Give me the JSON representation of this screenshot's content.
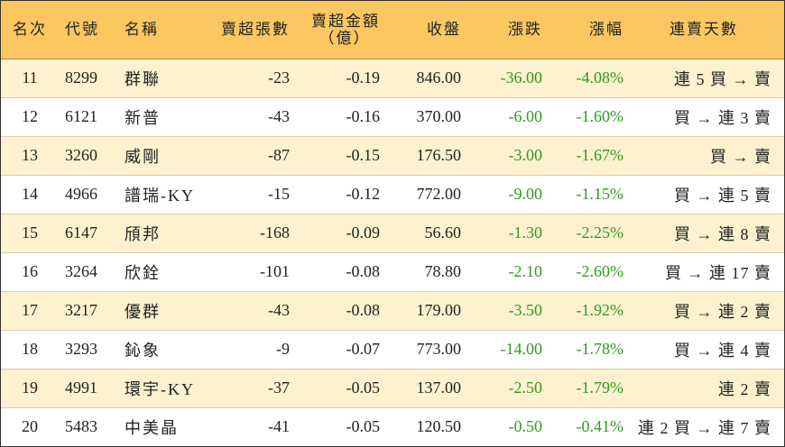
{
  "headers": {
    "rank": "名次",
    "code": "代號",
    "name": "名稱",
    "net_sell_lots": "賣超張數",
    "net_sell_amount_line1": "賣超金額",
    "net_sell_amount_line2": "（億）",
    "close": "收盤",
    "change": "漲跌",
    "change_pct": "漲幅",
    "consecutive_days": "連賣天數"
  },
  "rows": [
    {
      "rank": "11",
      "code": "8299",
      "name": "群聯",
      "lots": "-23",
      "amount": "-0.19",
      "close": "846.00",
      "change": "-36.00",
      "pct": "-4.08%",
      "streak": "連 5 買 → 賣"
    },
    {
      "rank": "12",
      "code": "6121",
      "name": "新普",
      "lots": "-43",
      "amount": "-0.16",
      "close": "370.00",
      "change": "-6.00",
      "pct": "-1.60%",
      "streak": "買 → 連 3 賣"
    },
    {
      "rank": "13",
      "code": "3260",
      "name": "威剛",
      "lots": "-87",
      "amount": "-0.15",
      "close": "176.50",
      "change": "-3.00",
      "pct": "-1.67%",
      "streak": "買 → 賣"
    },
    {
      "rank": "14",
      "code": "4966",
      "name": "譜瑞-KY",
      "lots": "-15",
      "amount": "-0.12",
      "close": "772.00",
      "change": "-9.00",
      "pct": "-1.15%",
      "streak": "買 → 連 5 賣"
    },
    {
      "rank": "15",
      "code": "6147",
      "name": "頎邦",
      "lots": "-168",
      "amount": "-0.09",
      "close": "56.60",
      "change": "-1.30",
      "pct": "-2.25%",
      "streak": "買 → 連 8 賣"
    },
    {
      "rank": "16",
      "code": "3264",
      "name": "欣銓",
      "lots": "-101",
      "amount": "-0.08",
      "close": "78.80",
      "change": "-2.10",
      "pct": "-2.60%",
      "streak": "買 → 連 17 賣"
    },
    {
      "rank": "17",
      "code": "3217",
      "name": "優群",
      "lots": "-43",
      "amount": "-0.08",
      "close": "179.00",
      "change": "-3.50",
      "pct": "-1.92%",
      "streak": "買 → 連 2 賣"
    },
    {
      "rank": "18",
      "code": "3293",
      "name": "鈊象",
      "lots": "-9",
      "amount": "-0.07",
      "close": "773.00",
      "change": "-14.00",
      "pct": "-1.78%",
      "streak": "買 → 連 4 賣"
    },
    {
      "rank": "19",
      "code": "4991",
      "name": "環宇-KY",
      "lots": "-37",
      "amount": "-0.05",
      "close": "137.00",
      "change": "-2.50",
      "pct": "-1.79%",
      "streak": "連 2 賣"
    },
    {
      "rank": "20",
      "code": "5483",
      "name": "中美晶",
      "lots": "-41",
      "amount": "-0.05",
      "close": "120.50",
      "change": "-0.50",
      "pct": "-0.41%",
      "streak": "連 2 買 → 連 7 賣"
    }
  ],
  "colors": {
    "header_bg": "#fbc760",
    "odd_row_bg": "#fdf1cf",
    "negative_change": "#2e9b1f"
  }
}
